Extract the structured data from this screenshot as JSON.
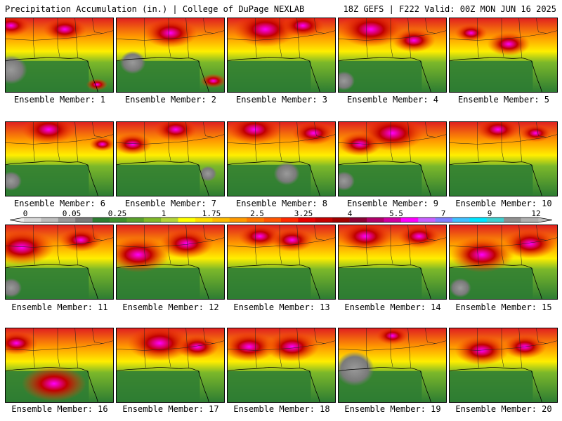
{
  "header": {
    "left": "Precipitation Accumulation (in.) | College of DuPage NEXLAB",
    "right": "18Z GEFS | F222 Valid: 00Z MON JUN 16 2025"
  },
  "colorbar": {
    "labels": [
      "0",
      "0.05",
      "0.25",
      "1",
      "1.75",
      "2.5",
      "3.25",
      "4",
      "5.5",
      "7",
      "9",
      "12"
    ],
    "colors": [
      "#d8d8d8",
      "#bdbdbd",
      "#9a9a9a",
      "#7a7a7a",
      "#2e7d32",
      "#3f8f2f",
      "#5aa02c",
      "#80b82a",
      "#b4d43a",
      "#ffff00",
      "#ffdd00",
      "#ffbb00",
      "#ff9900",
      "#ff7700",
      "#ff5500",
      "#ff2a00",
      "#e60000",
      "#c40000",
      "#a00000",
      "#8a0033",
      "#b0006a",
      "#d000a0",
      "#ff00ff",
      "#c860ff",
      "#8080ff",
      "#40c0ff",
      "#00e5ff",
      "#40d0d0",
      "#909090",
      "#b0b0b0"
    ]
  },
  "members": [
    {
      "label": "Ensemble Member: 1",
      "hot": [
        [
          0.05,
          0.1,
          0.18
        ],
        [
          0.55,
          0.15,
          0.2
        ],
        [
          0.85,
          0.9,
          0.1
        ]
      ],
      "gray": [
        [
          0.05,
          0.7,
          0.15
        ]
      ]
    },
    {
      "label": "Ensemble Member: 2",
      "hot": [
        [
          0.5,
          0.2,
          0.25
        ],
        [
          0.9,
          0.85,
          0.12
        ]
      ],
      "gray": [
        [
          0.15,
          0.6,
          0.12
        ]
      ]
    },
    {
      "label": "Ensemble Member: 3",
      "hot": [
        [
          0.35,
          0.15,
          0.3
        ],
        [
          0.7,
          0.1,
          0.2
        ]
      ],
      "gray": []
    },
    {
      "label": "Ensemble Member: 4",
      "hot": [
        [
          0.3,
          0.15,
          0.3
        ],
        [
          0.7,
          0.3,
          0.2
        ]
      ],
      "gray": [
        [
          0.05,
          0.85,
          0.1
        ]
      ]
    },
    {
      "label": "Ensemble Member: 5",
      "hot": [
        [
          0.55,
          0.35,
          0.2
        ],
        [
          0.2,
          0.2,
          0.15
        ]
      ],
      "gray": []
    },
    {
      "label": "Ensemble Member: 6",
      "hot": [
        [
          0.4,
          0.1,
          0.25
        ],
        [
          0.9,
          0.3,
          0.12
        ]
      ],
      "gray": [
        [
          0.05,
          0.8,
          0.1
        ]
      ]
    },
    {
      "label": "Ensemble Member: 7",
      "hot": [
        [
          0.15,
          0.3,
          0.18
        ],
        [
          0.55,
          0.1,
          0.2
        ]
      ],
      "gray": [
        [
          0.85,
          0.7,
          0.08
        ]
      ]
    },
    {
      "label": "Ensemble Member: 8",
      "hot": [
        [
          0.25,
          0.1,
          0.25
        ],
        [
          0.8,
          0.15,
          0.2
        ]
      ],
      "gray": [
        [
          0.55,
          0.7,
          0.12
        ]
      ]
    },
    {
      "label": "Ensemble Member: 9",
      "hot": [
        [
          0.5,
          0.15,
          0.3
        ],
        [
          0.2,
          0.3,
          0.2
        ]
      ],
      "gray": [
        [
          0.05,
          0.8,
          0.1
        ]
      ]
    },
    {
      "label": "Ensemble Member: 10",
      "hot": [
        [
          0.45,
          0.1,
          0.2
        ],
        [
          0.8,
          0.15,
          0.15
        ]
      ],
      "gray": []
    },
    {
      "label": "Ensemble Member: 11",
      "hot": [
        [
          0.15,
          0.3,
          0.3
        ],
        [
          0.7,
          0.2,
          0.2
        ]
      ],
      "gray": [
        [
          0.05,
          0.85,
          0.1
        ]
      ]
    },
    {
      "label": "Ensemble Member: 12",
      "hot": [
        [
          0.2,
          0.4,
          0.3
        ],
        [
          0.65,
          0.25,
          0.25
        ]
      ],
      "gray": []
    },
    {
      "label": "Ensemble Member: 13",
      "hot": [
        [
          0.3,
          0.15,
          0.2
        ],
        [
          0.6,
          0.2,
          0.2
        ]
      ],
      "gray": []
    },
    {
      "label": "Ensemble Member: 14",
      "hot": [
        [
          0.25,
          0.15,
          0.25
        ],
        [
          0.75,
          0.15,
          0.2
        ]
      ],
      "gray": []
    },
    {
      "label": "Ensemble Member: 15",
      "hot": [
        [
          0.3,
          0.4,
          0.3
        ],
        [
          0.75,
          0.25,
          0.25
        ]
      ],
      "gray": [
        [
          0.1,
          0.85,
          0.1
        ]
      ]
    },
    {
      "label": "Ensemble Member: 16",
      "hot": [
        [
          0.45,
          0.75,
          0.3
        ],
        [
          0.1,
          0.2,
          0.2
        ]
      ],
      "gray": []
    },
    {
      "label": "Ensemble Member: 17",
      "hot": [
        [
          0.4,
          0.2,
          0.3
        ],
        [
          0.75,
          0.25,
          0.2
        ]
      ],
      "gray": []
    },
    {
      "label": "Ensemble Member: 18",
      "hot": [
        [
          0.2,
          0.25,
          0.25
        ],
        [
          0.6,
          0.25,
          0.25
        ]
      ],
      "gray": []
    },
    {
      "label": "Ensemble Member: 19",
      "hot": [
        [
          0.5,
          0.1,
          0.15
        ]
      ],
      "gray": [
        [
          0.15,
          0.55,
          0.18
        ]
      ]
    },
    {
      "label": "Ensemble Member: 20",
      "hot": [
        [
          0.3,
          0.3,
          0.25
        ],
        [
          0.7,
          0.25,
          0.2
        ]
      ],
      "gray": []
    }
  ]
}
